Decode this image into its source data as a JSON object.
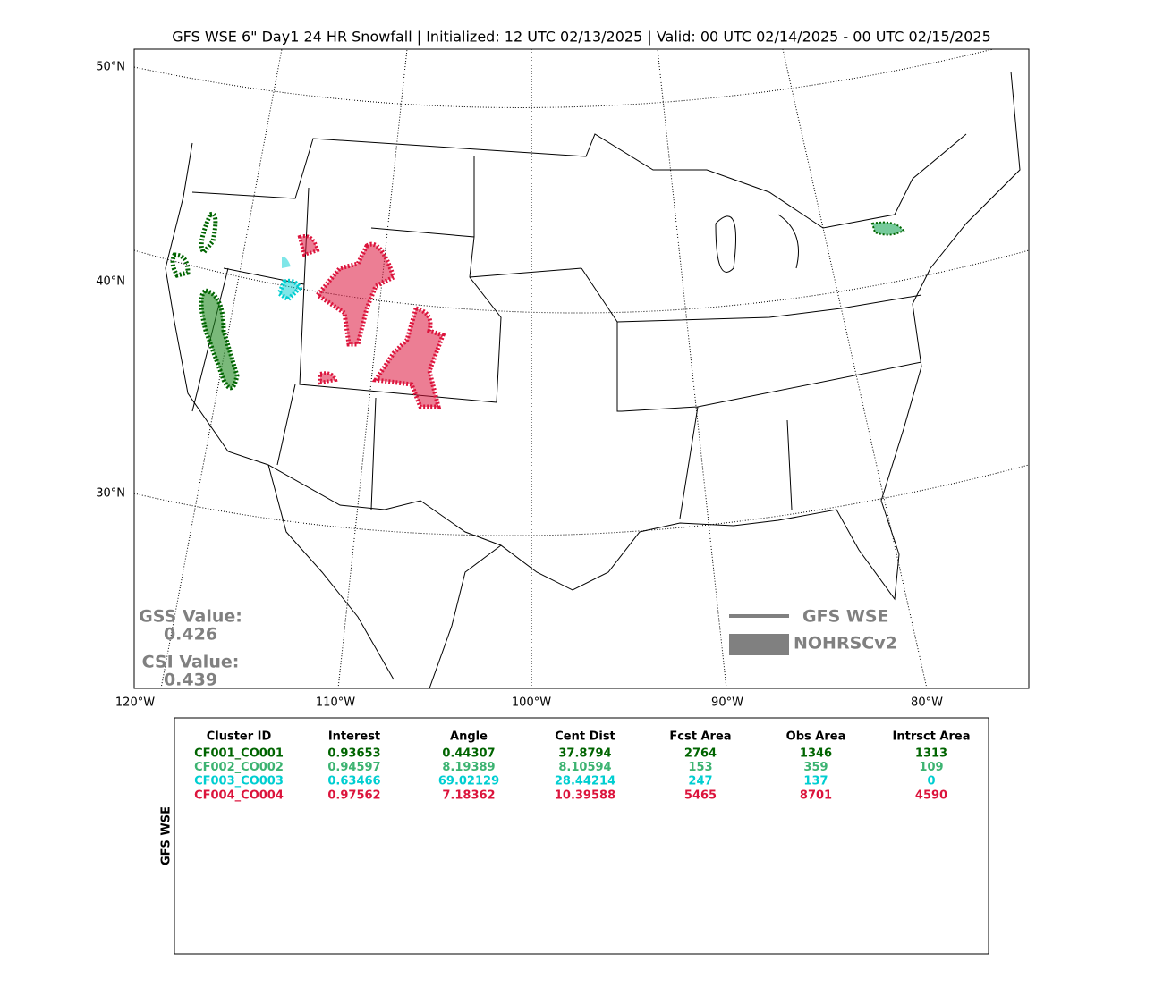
{
  "title": "GFS WSE 6\" Day1 24 HR Snowfall | Initialized: 12 UTC 02/13/2025 | Valid: 00 UTC 02/14/2025 - 00 UTC 02/15/2025",
  "map": {
    "lat_labels": [
      "50°N",
      "40°N",
      "30°N"
    ],
    "lon_labels": [
      "120°W",
      "110°W",
      "100°W",
      "90°W",
      "80°W"
    ],
    "scores": [
      {
        "label": "GSS Value:",
        "value": "0.426"
      },
      {
        "label": "CSI Value:",
        "value": "0.439"
      }
    ],
    "legend": [
      {
        "label": "GFS WSE",
        "color": "#808080"
      },
      {
        "label": "NOHRSCv2",
        "color": "#808080"
      }
    ]
  },
  "table": {
    "side_label": "GFS WSE",
    "headers": [
      "Cluster ID",
      "Interest",
      "Angle",
      "Cent Dist",
      "Fcst Area",
      "Obs Area",
      "Intrsct Area"
    ],
    "rows": [
      {
        "color": "#006400",
        "cells": [
          "CF001_CO001",
          "0.93653",
          "0.44307",
          "37.8794",
          "2764",
          "1346",
          "1313"
        ]
      },
      {
        "color": "#3cb371",
        "cells": [
          "CF002_CO002",
          "0.94597",
          "8.19389",
          "8.10594",
          "153",
          "359",
          "109"
        ]
      },
      {
        "color": "#00ced1",
        "cells": [
          "CF003_CO003",
          "0.63466",
          "69.02129",
          "28.44214",
          "247",
          "137",
          "0"
        ]
      },
      {
        "color": "#dc143c",
        "cells": [
          "CF004_CO004",
          "0.97562",
          "7.18362",
          "10.39588",
          "5465",
          "8701",
          "4590"
        ]
      }
    ]
  }
}
